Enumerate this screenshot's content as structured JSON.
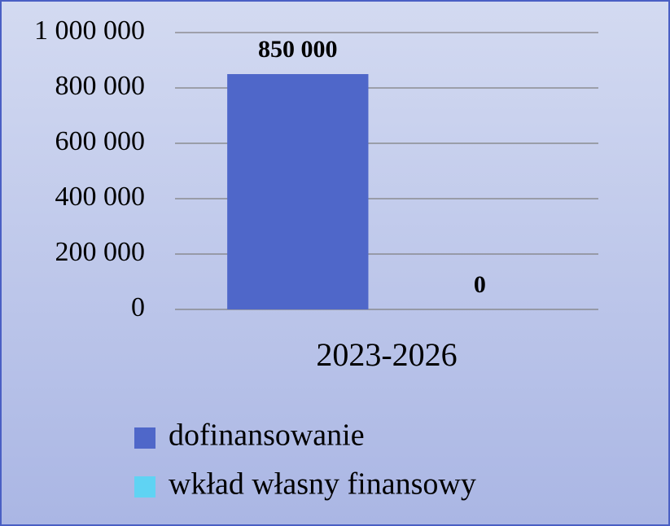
{
  "chart_data": {
    "type": "bar",
    "categories": [
      "2023-2026"
    ],
    "series": [
      {
        "name": "dofinansowanie",
        "color": "#4f67c9",
        "values": [
          850000
        ],
        "value_labels": [
          "850 000"
        ]
      },
      {
        "name": "wkład własny finansowy",
        "color": "#5fd3f3",
        "values": [
          0
        ],
        "value_labels": [
          "0"
        ]
      }
    ],
    "ylim": [
      0,
      1000000
    ],
    "yticks": [
      0,
      {
        "value": 200000,
        "label": "200 000"
      },
      {
        "value": 400000,
        "label": "400 000"
      },
      {
        "value": 600000,
        "label": "600 000"
      },
      {
        "value": 800000,
        "label": "800 000"
      },
      {
        "value": 1000000,
        "label": "1 000 000"
      }
    ],
    "grid": true,
    "legend": "bottom"
  }
}
